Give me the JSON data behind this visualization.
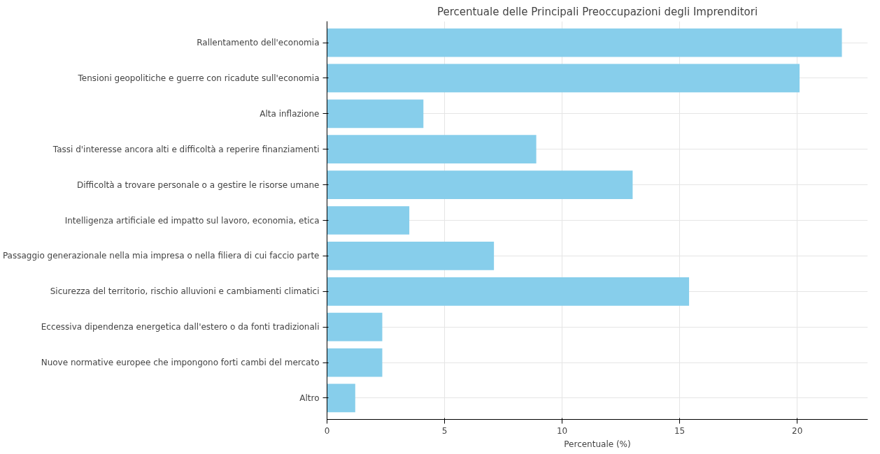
{
  "chart_data": {
    "type": "bar",
    "orientation": "horizontal",
    "title": "Percentuale delle Principali Preoccupazioni degli Imprenditori",
    "xlabel": "Percentuale (%)",
    "categories": [
      "Rallentamento dell'economia",
      "Tensioni geopolitiche e guerre con ricadute sull'economia",
      "Alta inflazione",
      "Tassi d'interesse ancora alti e difficoltà a reperire finanziamenti",
      "Difficoltà a trovare personale o a gestire le risorse umane",
      "Intelligenza artificiale ed impatto sul lavoro, economia, etica",
      "Passaggio generazionale nella mia impresa o nella filiera di cui faccio parte",
      "Sicurezza del territorio, rischio alluvioni e cambiamenti climatici",
      "Eccessiva dipendenza energetica dall'estero o da fonti tradizionali",
      "Nuove normative europee che impongono forti cambi del mercato",
      "Altro"
    ],
    "values": [
      21.9,
      20.1,
      4.1,
      8.9,
      13.0,
      3.5,
      7.1,
      15.4,
      2.35,
      2.35,
      1.2
    ],
    "color": "#87ceeb",
    "xlim": [
      0,
      23
    ],
    "xticks": [
      0,
      5,
      10,
      15,
      20
    ],
    "grid": true
  }
}
